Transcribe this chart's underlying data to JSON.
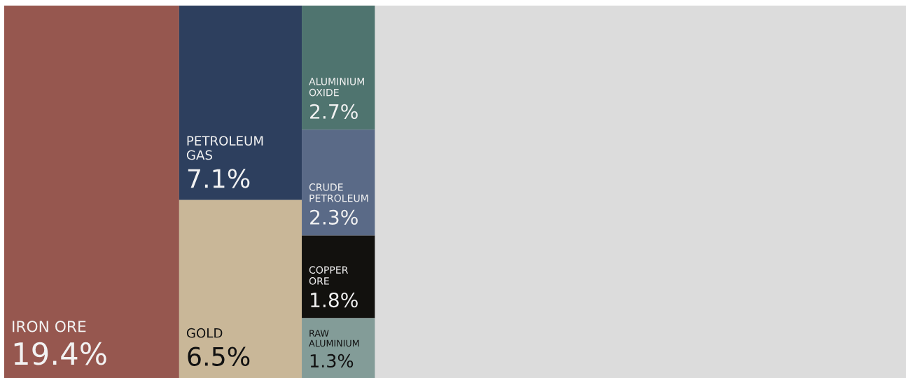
{
  "chart_data": {
    "type": "other",
    "categories": [
      "IRON ORE",
      "PETROLEUM GAS",
      "GOLD",
      "ALUMINIUM OXIDE",
      "CRUDE PETROLEUM",
      "COPPER ORE",
      "RAW ALUMINIUM"
    ],
    "values": [
      19.4,
      7.1,
      6.5,
      2.7,
      2.3,
      1.8,
      1.3
    ],
    "value_labels": [
      "19.4%",
      "7.1%",
      "6.5%",
      "2.7%",
      "2.3%",
      "1.8%",
      "1.3%"
    ],
    "colors": [
      "#96574f",
      "#2d3f5e",
      "#c9b798",
      "#4f746f",
      "#5a6a87",
      "#12110e",
      "#839c98"
    ]
  }
}
